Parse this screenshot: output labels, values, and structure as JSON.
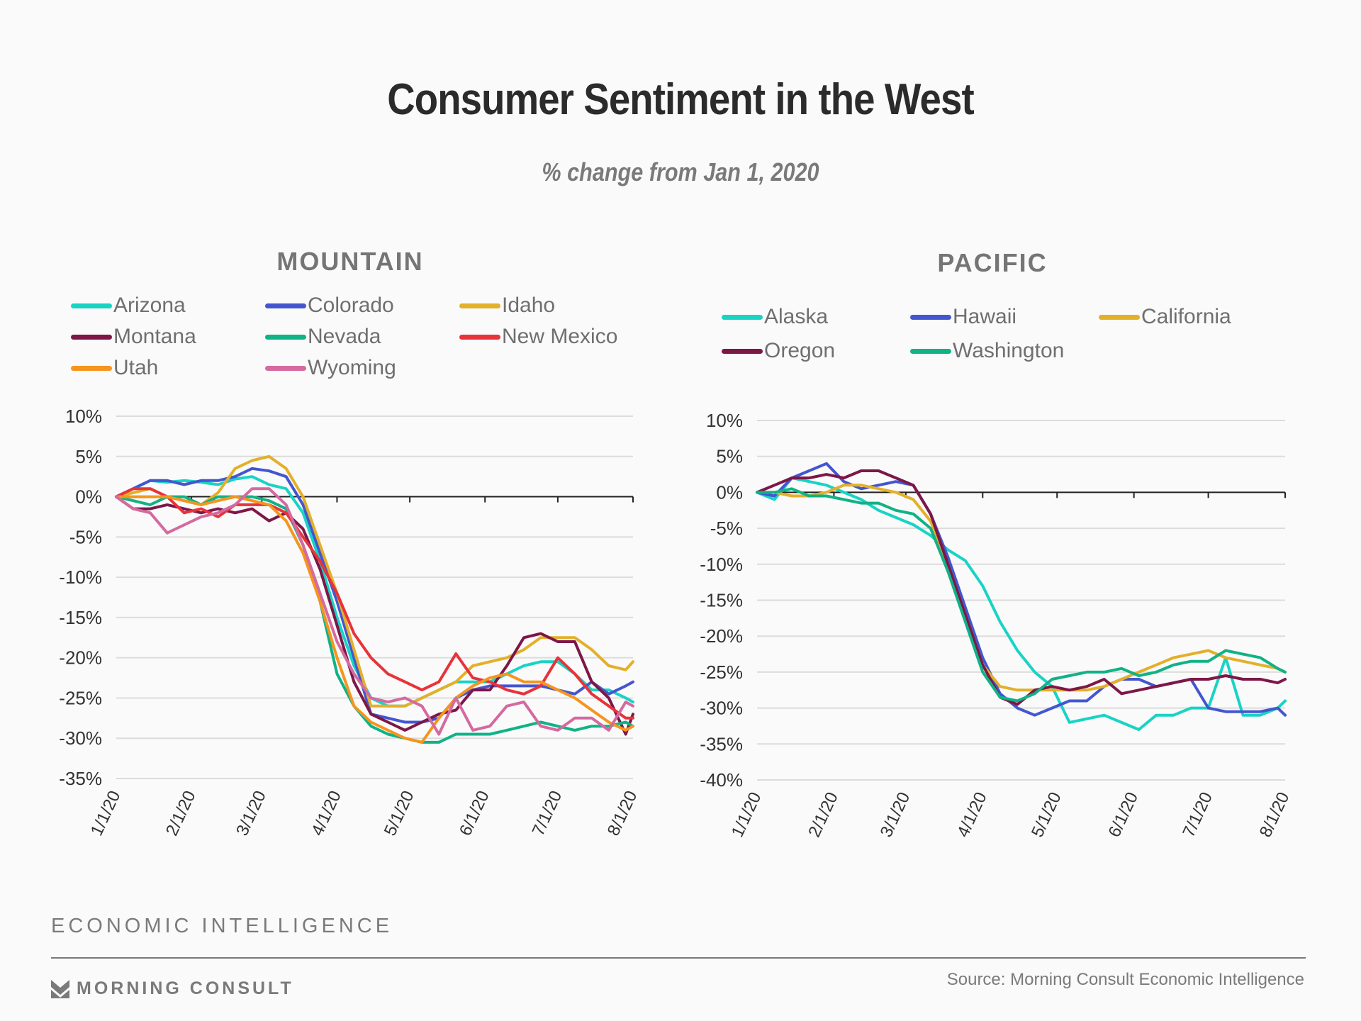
{
  "title": "Consumer Sentiment in the West",
  "subtitle": "% change from Jan 1, 2020",
  "footer": {
    "brand_label": "ECONOMIC INTELLIGENCE",
    "logo_text": "MORNING CONSULT",
    "source": "Source: Morning Consult Economic Intelligence"
  },
  "chart_data": [
    {
      "type": "line",
      "title": "MOUNTAIN",
      "xlabel": "",
      "ylabel": "",
      "x_unit": "days since 1/1/20",
      "x_ticks": [
        0,
        31,
        60,
        91,
        121,
        152,
        182,
        213
      ],
      "x_tick_labels": [
        "1/1/20",
        "2/1/20",
        "3/1/20",
        "4/1/20",
        "5/1/20",
        "6/1/20",
        "7/1/20",
        "8/1/20"
      ],
      "xlim": [
        0,
        213
      ],
      "ylim": [
        -35,
        10
      ],
      "y_ticks": [
        10,
        5,
        0,
        -5,
        -10,
        -15,
        -20,
        -25,
        -30,
        -35
      ],
      "y_tick_labels": [
        "10%",
        "5%",
        "0%",
        "-5%",
        "-10%",
        "-15%",
        "-20%",
        "-25%",
        "-30%",
        "-35%"
      ],
      "grid": true,
      "legend_position": "top",
      "x": [
        0,
        7,
        14,
        21,
        28,
        35,
        42,
        49,
        56,
        63,
        70,
        77,
        84,
        91,
        98,
        105,
        112,
        119,
        126,
        133,
        140,
        147,
        154,
        161,
        168,
        175,
        182,
        189,
        196,
        203,
        210,
        213
      ],
      "series": [
        {
          "name": "Arizona",
          "color": "#19d3c5",
          "values": [
            0,
            1,
            2,
            1.8,
            2,
            1.8,
            1.5,
            2.2,
            2.5,
            1.5,
            1,
            -2,
            -8,
            -15,
            -21,
            -25,
            -26,
            -26,
            -25,
            -24,
            -23,
            -23,
            -23,
            -22,
            -21,
            -20.5,
            -20.5,
            -22,
            -24,
            -24,
            -25,
            -25.5
          ]
        },
        {
          "name": "Colorado",
          "color": "#4356d0",
          "values": [
            0,
            1,
            2,
            2,
            1.5,
            2,
            2,
            2.5,
            3.5,
            3.2,
            2.5,
            -1,
            -7,
            -13,
            -20,
            -27,
            -27.5,
            -28,
            -28,
            -27.5,
            -25,
            -24,
            -23.5,
            -23.5,
            -23.5,
            -23.5,
            -24,
            -24.5,
            -23,
            -24.5,
            -23.5,
            -23
          ]
        },
        {
          "name": "Idaho",
          "color": "#e3b02a",
          "values": [
            0,
            0.5,
            1,
            0,
            -0.5,
            -1,
            0.5,
            3.5,
            4.5,
            5,
            3.5,
            0,
            -6,
            -12,
            -19,
            -26,
            -26,
            -26,
            -25,
            -24,
            -23,
            -21,
            -20.5,
            -20,
            -19,
            -17.5,
            -17.5,
            -17.5,
            -19,
            -21,
            -21.5,
            -20.5
          ]
        },
        {
          "name": "Montana",
          "color": "#7d1747",
          "values": [
            0,
            -1.5,
            -1.5,
            -1,
            -1.5,
            -2,
            -1.5,
            -2,
            -1.5,
            -3,
            -2,
            -4,
            -9,
            -16,
            -23,
            -27,
            -28,
            -29,
            -28,
            -27,
            -26.5,
            -24,
            -24,
            -21,
            -17.5,
            -17,
            -18,
            -18,
            -23,
            -25,
            -29.5,
            -27
          ]
        },
        {
          "name": "Nevada",
          "color": "#10b286",
          "values": [
            0,
            -0.5,
            -1,
            0,
            0,
            -1,
            0,
            0,
            0,
            -0.5,
            -1.5,
            -6,
            -13,
            -22,
            -26,
            -28.5,
            -29.5,
            -30,
            -30.5,
            -30.5,
            -29.5,
            -29.5,
            -29.5,
            -29,
            -28.5,
            -28,
            -28.5,
            -29,
            -28.5,
            -28.5,
            -28,
            -28.5
          ]
        },
        {
          "name": "New Mexico",
          "color": "#e8333a",
          "values": [
            0,
            1,
            1,
            0,
            -2,
            -1.5,
            -2.5,
            -1,
            -1,
            -1,
            -2,
            -5,
            -8,
            -12,
            -17,
            -20,
            -22,
            -23,
            -24,
            -23,
            -19.5,
            -22.5,
            -23,
            -24,
            -24.5,
            -23.5,
            -20,
            -22,
            -24.5,
            -26,
            -27.5,
            -27.5
          ]
        },
        {
          "name": "Utah",
          "color": "#f5951e",
          "values": [
            0,
            0,
            0,
            0,
            -0.5,
            -1,
            -0.5,
            0,
            -0.5,
            -1,
            -3,
            -7,
            -13,
            -20,
            -26,
            -28,
            -29,
            -30,
            -30.5,
            -27.5,
            -25,
            -23.5,
            -22.5,
            -22,
            -23,
            -23,
            -24,
            -25,
            -26.5,
            -28,
            -29,
            -28.5
          ]
        },
        {
          "name": "Wyoming",
          "color": "#d46a9f",
          "values": [
            0,
            -1.5,
            -2,
            -4.5,
            -3.5,
            -2.5,
            -2,
            -1,
            1,
            1,
            -1,
            -6,
            -12,
            -18,
            -22,
            -25,
            -25.5,
            -25,
            -26,
            -29.5,
            -25,
            -29,
            -28.5,
            -26,
            -25.5,
            -28.5,
            -29,
            -27.5,
            -27.5,
            -29,
            -25.5,
            -26
          ]
        }
      ]
    },
    {
      "type": "line",
      "title": "PACIFIC",
      "xlabel": "",
      "ylabel": "",
      "x_unit": "days since 1/1/20",
      "x_ticks": [
        0,
        31,
        60,
        91,
        121,
        152,
        182,
        213
      ],
      "x_tick_labels": [
        "1/1/20",
        "2/1/20",
        "3/1/20",
        "4/1/20",
        "5/1/20",
        "6/1/20",
        "7/1/20",
        "8/1/20"
      ],
      "xlim": [
        0,
        213
      ],
      "ylim": [
        -40,
        10
      ],
      "y_ticks": [
        10,
        5,
        0,
        -5,
        -10,
        -15,
        -20,
        -25,
        -30,
        -35,
        -40
      ],
      "y_tick_labels": [
        "10%",
        "5%",
        "0%",
        "-5%",
        "-10%",
        "-15%",
        "-20%",
        "-25%",
        "-30%",
        "-35%",
        "-40%"
      ],
      "grid": true,
      "legend_position": "top",
      "x": [
        0,
        7,
        14,
        21,
        28,
        35,
        42,
        49,
        56,
        63,
        70,
        77,
        84,
        91,
        98,
        105,
        112,
        119,
        126,
        133,
        140,
        147,
        154,
        161,
        168,
        175,
        182,
        189,
        196,
        203,
        210,
        213
      ],
      "series": [
        {
          "name": "Alaska",
          "color": "#19d3c5",
          "values": [
            0,
            -1,
            2,
            1.5,
            1,
            0,
            -1,
            -2.5,
            -3.5,
            -4.5,
            -6,
            -8,
            -9.5,
            -13,
            -18,
            -22,
            -25,
            -27,
            -32,
            -31.5,
            -31,
            -32,
            -33,
            -31,
            -31,
            -30,
            -30,
            -23,
            -31,
            -31,
            -30,
            -29
          ]
        },
        {
          "name": "Hawaii",
          "color": "#4356d0",
          "values": [
            0,
            -0.5,
            2,
            3,
            4,
            1.5,
            0.5,
            1,
            1.5,
            1,
            -3,
            -9,
            -16,
            -23,
            -28,
            -30,
            -31,
            -30,
            -29,
            -29,
            -27,
            -26,
            -26,
            -27,
            -26.5,
            -26,
            -30,
            -30.5,
            -30.5,
            -30.5,
            -30,
            -31
          ]
        },
        {
          "name": "California",
          "color": "#e3b02a",
          "values": [
            0,
            0,
            -0.5,
            -0.5,
            0,
            1,
            1,
            0.5,
            0,
            -1,
            -4,
            -10,
            -17,
            -24,
            -27,
            -27.5,
            -27.5,
            -27.5,
            -27.5,
            -27.5,
            -27,
            -26,
            -25,
            -24,
            -23,
            -22.5,
            -22,
            -23,
            -23.5,
            -24,
            -24.5,
            -25
          ]
        },
        {
          "name": "Oregon",
          "color": "#7d1747",
          "values": [
            0,
            1,
            2,
            2,
            2.5,
            2,
            3,
            3,
            2,
            1,
            -3,
            -10,
            -17,
            -24,
            -28.5,
            -29.5,
            -27.5,
            -27,
            -27.5,
            -27,
            -26,
            -28,
            -27.5,
            -27,
            -26.5,
            -26,
            -26,
            -25.5,
            -26,
            -26,
            -26.5,
            -26
          ]
        },
        {
          "name": "Washington",
          "color": "#10b286",
          "values": [
            0,
            0,
            0.5,
            -0.5,
            -0.5,
            -1,
            -1.5,
            -1.5,
            -2.5,
            -3,
            -5,
            -11,
            -18,
            -25,
            -28.5,
            -29,
            -28,
            -26,
            -25.5,
            -25,
            -25,
            -24.5,
            -25.5,
            -25,
            -24,
            -23.5,
            -23.5,
            -22,
            -22.5,
            -23,
            -24.5,
            -25
          ]
        }
      ]
    }
  ]
}
